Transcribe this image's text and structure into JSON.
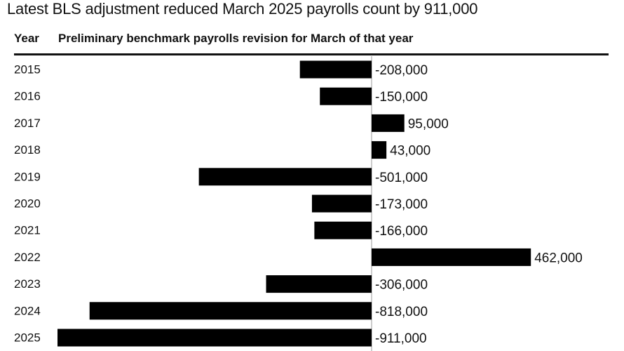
{
  "chart_data": {
    "type": "bar",
    "orientation": "horizontal",
    "title": "Latest BLS adjustment reduced March 2025 payrolls count by 911,000",
    "column_headers": {
      "year": "Year",
      "value": "Preliminary benchmark payrolls revision for March of that year"
    },
    "categories": [
      "2015",
      "2016",
      "2017",
      "2018",
      "2019",
      "2020",
      "2021",
      "2022",
      "2023",
      "2024",
      "2025"
    ],
    "values": [
      -208000,
      -150000,
      95000,
      43000,
      -501000,
      -173000,
      -166000,
      462000,
      -306000,
      -818000,
      -911000
    ],
    "value_labels": [
      "-208,000",
      "-150,000",
      "95,000",
      "43,000",
      "-501,000",
      "-173,000",
      "-166,000",
      "462,000",
      "-306,000",
      "-818,000",
      "-911,000"
    ],
    "bar_color": "#000000",
    "grid": false
  }
}
